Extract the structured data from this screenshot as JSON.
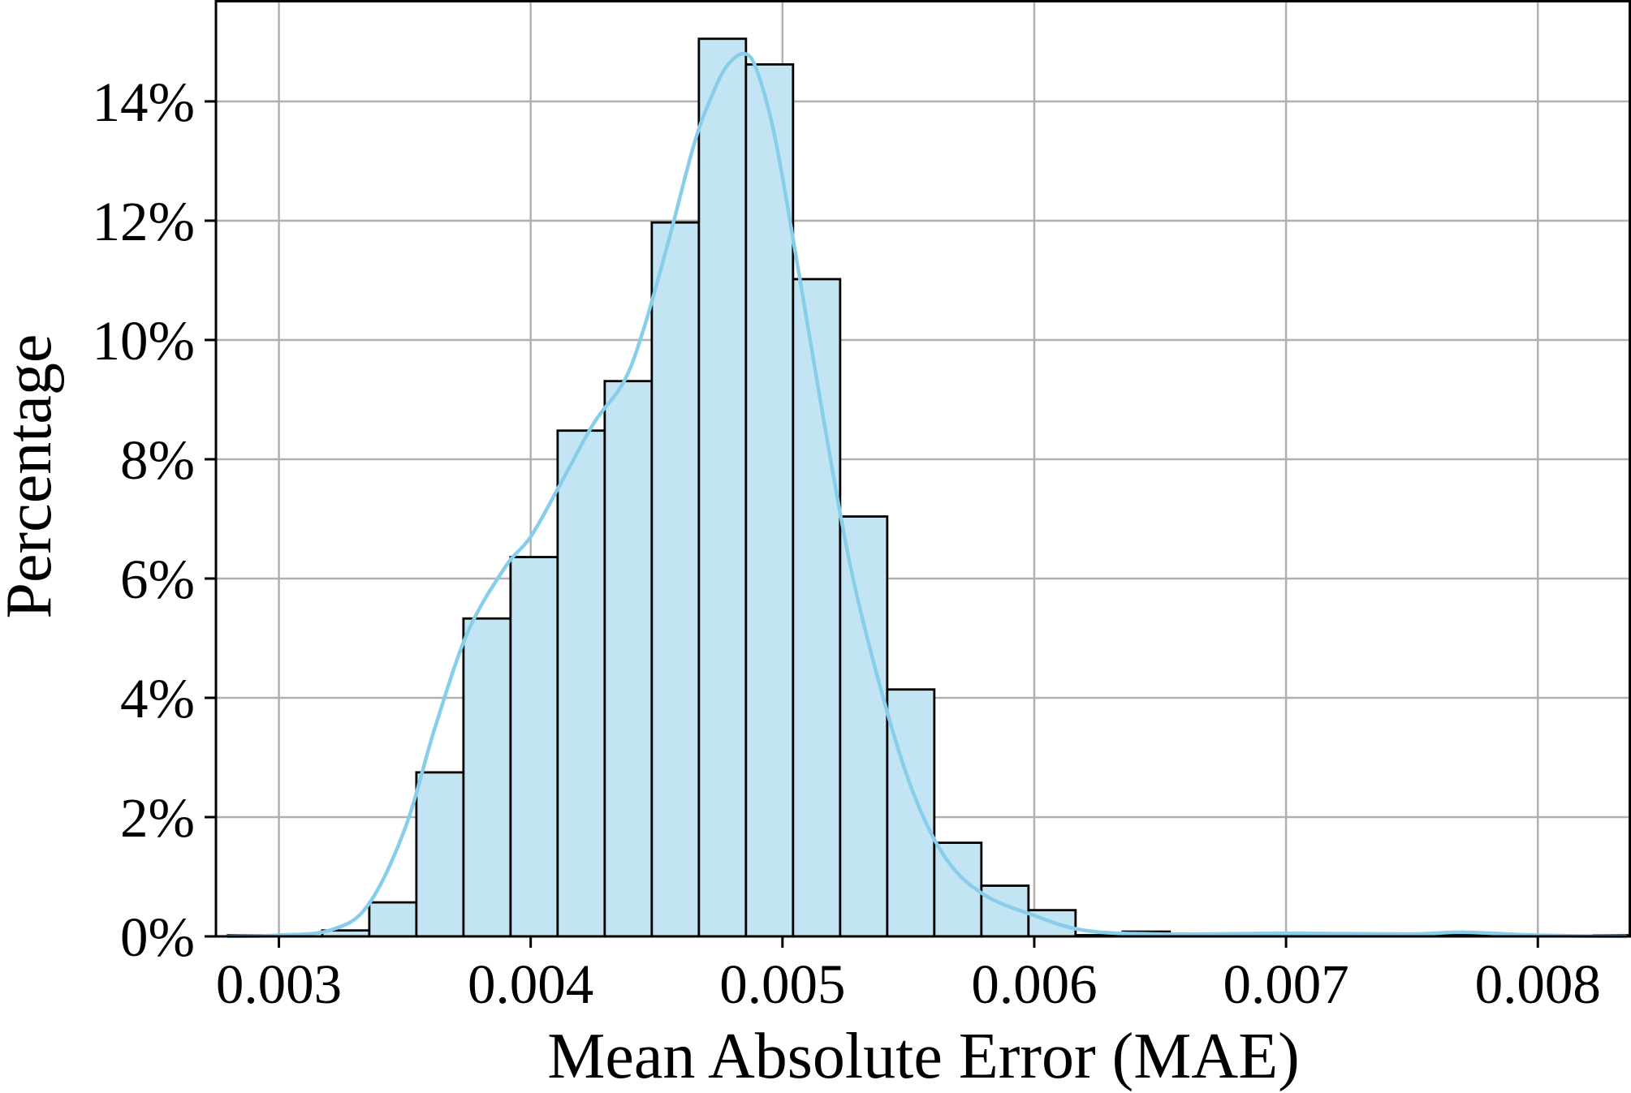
{
  "chart_data": {
    "type": "bar",
    "subtype": "histogram",
    "xlabel": "Mean Absolute Error (MAE)",
    "ylabel": "Percentage",
    "xlim": [
      0.00275,
      0.00837
    ],
    "ylim": [
      0,
      15.7
    ],
    "x_ticks": [
      {
        "value": 0.003,
        "label": "0.003"
      },
      {
        "value": 0.004,
        "label": "0.004"
      },
      {
        "value": 0.005,
        "label": "0.005"
      },
      {
        "value": 0.006,
        "label": "0.006"
      },
      {
        "value": 0.007,
        "label": "0.007"
      },
      {
        "value": 0.008,
        "label": "0.008"
      }
    ],
    "y_ticks": [
      {
        "value": 0,
        "label": "0%"
      },
      {
        "value": 2,
        "label": "2%"
      },
      {
        "value": 4,
        "label": "4%"
      },
      {
        "value": 6,
        "label": "6%"
      },
      {
        "value": 8,
        "label": "8%"
      },
      {
        "value": 10,
        "label": "10%"
      },
      {
        "value": 12,
        "label": "12%"
      },
      {
        "value": 14,
        "label": "14%"
      }
    ],
    "grid": true,
    "bin_edges": [
      0.002798,
      0.002985,
      0.003172,
      0.003359,
      0.003546,
      0.003733,
      0.00392,
      0.004107,
      0.004294,
      0.004481,
      0.004668,
      0.004855,
      0.005042,
      0.005229,
      0.005416,
      0.005603,
      0.00579,
      0.005977,
      0.006164,
      0.006351,
      0.006538,
      0.006725,
      0.006912,
      0.007099,
      0.007286,
      0.007473,
      0.00766,
      0.007847,
      0.008034,
      0.008221,
      0.008408
    ],
    "values": [
      0.02,
      0.0,
      0.1,
      0.57,
      2.75,
      5.33,
      6.36,
      8.48,
      9.31,
      11.97,
      15.05,
      14.62,
      11.02,
      7.04,
      4.14,
      1.57,
      0.85,
      0.44,
      0.02,
      0.08,
      0.02,
      0.02,
      0.04,
      0.02,
      0.02,
      0.04,
      0.04,
      0.0,
      0.0,
      0.02
    ],
    "kde": {
      "x": [
        0.0028,
        0.003,
        0.0032,
        0.00335,
        0.0035,
        0.00362,
        0.00375,
        0.0039,
        0.004,
        0.00412,
        0.00425,
        0.00437,
        0.00445,
        0.00455,
        0.00465,
        0.00472,
        0.00478,
        0.00485,
        0.0049,
        0.00497,
        0.00505,
        0.00515,
        0.00527,
        0.0054,
        0.00552,
        0.00565,
        0.0058,
        0.006,
        0.0062,
        0.0065,
        0.007,
        0.0075,
        0.0077,
        0.008,
        0.00835
      ],
      "y": [
        0.0,
        0.02,
        0.1,
        0.5,
        1.8,
        3.5,
        5.1,
        6.2,
        6.7,
        7.6,
        8.6,
        9.3,
        10.2,
        11.7,
        13.3,
        14.1,
        14.6,
        14.8,
        14.5,
        13.4,
        11.5,
        9.0,
        6.2,
        4.0,
        2.4,
        1.3,
        0.7,
        0.35,
        0.1,
        0.04,
        0.05,
        0.04,
        0.07,
        0.02,
        0.0
      ]
    },
    "colors": {
      "bar_fill": "#c3e4f2",
      "bar_edge": "#000000",
      "kde_line": "#87ceeb",
      "grid": "#b0b0b0"
    }
  }
}
